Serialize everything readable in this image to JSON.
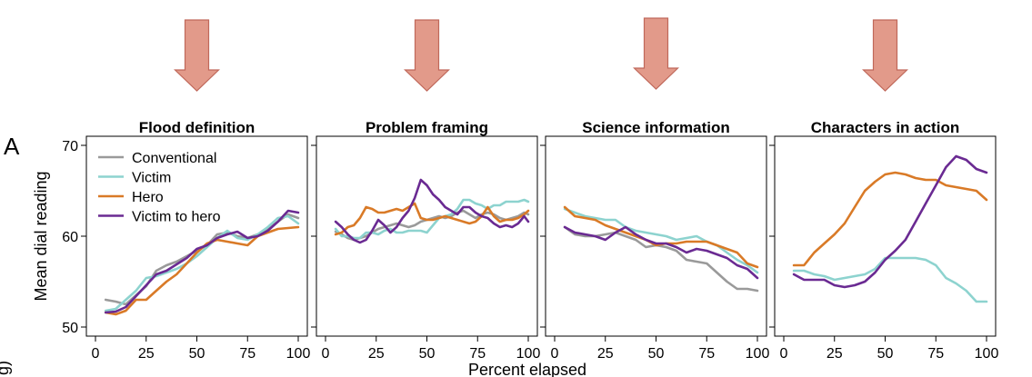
{
  "panel_letter": "A",
  "cut_label": "g)",
  "colors": {
    "Conventional": "#9a9a9a",
    "Victim": "#8dd3cf",
    "Hero": "#d97a27",
    "Victim to hero": "#6a2a92",
    "arrow_fill": "#e29a8a",
    "arrow_stroke": "#c0685a"
  },
  "chart_data": [
    {
      "type": "line",
      "title": "Flood definition",
      "xlabel": "Percent elapsed",
      "ylabel": "Mean dial reading",
      "xlim": [
        0,
        100
      ],
      "ylim": [
        49,
        71
      ],
      "xticks": [
        0,
        25,
        50,
        75,
        100
      ],
      "yticks": [
        50,
        60,
        70
      ],
      "grid": false,
      "legend": "top-left",
      "x": [
        5,
        10,
        15,
        20,
        25,
        30,
        35,
        40,
        45,
        50,
        55,
        60,
        65,
        70,
        75,
        80,
        85,
        90,
        95,
        100
      ],
      "series": [
        {
          "name": "Conventional",
          "values": [
            53.0,
            52.8,
            52.5,
            53.5,
            54.5,
            56.2,
            56.8,
            57.2,
            57.8,
            58.4,
            59.0,
            60.2,
            60.4,
            60.0,
            59.8,
            60.2,
            60.8,
            61.6,
            62.4,
            62.0
          ]
        },
        {
          "name": "Victim",
          "values": [
            51.8,
            52.0,
            53.0,
            54.0,
            55.4,
            55.6,
            56.0,
            56.4,
            57.0,
            57.8,
            58.8,
            59.8,
            60.6,
            59.8,
            59.6,
            60.2,
            61.0,
            62.0,
            62.2,
            61.4
          ]
        },
        {
          "name": "Hero",
          "values": [
            51.6,
            51.4,
            51.8,
            53.0,
            53.0,
            54.0,
            55.0,
            55.8,
            57.0,
            58.2,
            59.2,
            59.6,
            59.4,
            59.2,
            59.0,
            60.0,
            60.4,
            60.8,
            60.9,
            61.0
          ]
        },
        {
          "name": "Victim to hero",
          "values": [
            51.6,
            51.7,
            52.2,
            53.4,
            54.6,
            55.8,
            56.2,
            56.9,
            57.6,
            58.6,
            59.0,
            59.8,
            60.2,
            60.5,
            59.8,
            60.0,
            60.6,
            61.6,
            62.8,
            62.6
          ]
        }
      ]
    },
    {
      "type": "line",
      "title": "Problem framing",
      "xlabel": "Percent elapsed",
      "ylabel": "",
      "xlim": [
        0,
        100
      ],
      "ylim": [
        49,
        71
      ],
      "xticks": [
        0,
        25,
        50,
        75,
        100
      ],
      "yticks": [
        50,
        60,
        70
      ],
      "grid": false,
      "x": [
        5,
        8,
        11,
        14,
        17,
        20,
        23,
        26,
        29,
        32,
        35,
        38,
        41,
        44,
        47,
        50,
        53,
        56,
        59,
        62,
        65,
        68,
        71,
        74,
        77,
        80,
        83,
        86,
        89,
        92,
        95,
        98,
        100
      ],
      "series": [
        {
          "name": "Conventional",
          "values": [
            60.5,
            60.2,
            59.8,
            59.6,
            59.8,
            60.0,
            60.4,
            60.8,
            61.0,
            61.2,
            61.4,
            61.2,
            61.0,
            61.2,
            61.6,
            61.8,
            62.0,
            62.2,
            62.0,
            62.2,
            62.6,
            62.8,
            62.4,
            62.0,
            62.4,
            62.6,
            62.4,
            62.0,
            61.8,
            62.0,
            62.2,
            62.6,
            62.4
          ]
        },
        {
          "name": "Victim",
          "values": [
            60.8,
            60.0,
            60.0,
            59.8,
            59.8,
            60.4,
            60.4,
            60.2,
            60.6,
            60.8,
            60.4,
            60.4,
            60.6,
            60.6,
            60.6,
            60.4,
            61.2,
            62.0,
            62.2,
            62.4,
            63.0,
            64.0,
            64.0,
            63.6,
            63.4,
            63.0,
            63.4,
            63.4,
            63.8,
            63.8,
            63.8,
            64.0,
            63.8
          ]
        },
        {
          "name": "Hero",
          "values": [
            60.2,
            60.4,
            61.0,
            61.2,
            62.0,
            63.2,
            63.0,
            62.6,
            62.6,
            62.8,
            63.0,
            62.8,
            63.2,
            63.6,
            62.0,
            61.8,
            61.8,
            62.0,
            62.2,
            62.0,
            61.8,
            61.6,
            61.4,
            61.6,
            62.2,
            63.2,
            62.2,
            61.6,
            61.8,
            61.8,
            62.0,
            62.4,
            62.8
          ]
        },
        {
          "name": "Victim to hero",
          "values": [
            61.6,
            61.0,
            60.2,
            59.6,
            59.3,
            59.6,
            60.6,
            61.8,
            61.2,
            60.4,
            61.0,
            62.0,
            62.8,
            64.2,
            66.2,
            65.6,
            64.6,
            64.0,
            63.2,
            62.8,
            62.4,
            63.2,
            63.2,
            62.6,
            62.2,
            62.0,
            61.4,
            61.0,
            61.2,
            61.0,
            61.4,
            62.2,
            61.6
          ]
        }
      ]
    },
    {
      "type": "line",
      "title": "Science information",
      "xlabel": "Percent elapsed",
      "ylabel": "",
      "xlim": [
        0,
        100
      ],
      "ylim": [
        49,
        71
      ],
      "xticks": [
        0,
        25,
        50,
        75,
        100
      ],
      "yticks": [
        50,
        60,
        70
      ],
      "grid": false,
      "x": [
        5,
        10,
        15,
        20,
        25,
        30,
        35,
        40,
        45,
        50,
        55,
        60,
        65,
        70,
        75,
        80,
        85,
        90,
        95,
        100
      ],
      "series": [
        {
          "name": "Conventional",
          "values": [
            61.0,
            60.2,
            60.0,
            60.0,
            60.2,
            60.4,
            60.0,
            59.6,
            58.8,
            59.0,
            58.8,
            58.4,
            57.4,
            57.2,
            57.0,
            56.0,
            55.0,
            54.2,
            54.2,
            54.0
          ]
        },
        {
          "name": "Victim",
          "values": [
            63.0,
            62.6,
            62.2,
            62.0,
            61.8,
            61.8,
            61.0,
            60.6,
            60.4,
            60.2,
            60.0,
            59.6,
            59.8,
            60.0,
            59.4,
            59.0,
            58.2,
            57.4,
            56.8,
            56.0
          ]
        },
        {
          "name": "Hero",
          "values": [
            63.2,
            62.2,
            62.0,
            61.8,
            61.2,
            60.8,
            60.4,
            60.0,
            59.6,
            59.0,
            59.2,
            59.2,
            59.4,
            59.4,
            59.4,
            59.0,
            58.6,
            58.2,
            57.0,
            56.6
          ]
        },
        {
          "name": "Victim to hero",
          "values": [
            61.0,
            60.4,
            60.2,
            60.0,
            59.6,
            60.4,
            61.0,
            60.2,
            59.6,
            59.2,
            59.2,
            58.8,
            58.2,
            58.6,
            58.4,
            58.0,
            57.6,
            56.8,
            56.4,
            55.4
          ]
        }
      ]
    },
    {
      "type": "line",
      "title": "Characters in action",
      "xlabel": "Percent elapsed",
      "ylabel": "",
      "xlim": [
        0,
        100
      ],
      "ylim": [
        49,
        71
      ],
      "xticks": [
        0,
        25,
        50,
        75,
        100
      ],
      "yticks": [
        50,
        60,
        70
      ],
      "grid": false,
      "x": [
        5,
        10,
        15,
        20,
        25,
        30,
        35,
        40,
        45,
        50,
        55,
        60,
        65,
        70,
        75,
        80,
        85,
        90,
        95,
        100
      ],
      "series": [
        {
          "name": "Victim",
          "values": [
            56.2,
            56.2,
            55.8,
            55.6,
            55.2,
            55.4,
            55.6,
            55.8,
            56.4,
            57.6,
            57.6,
            57.6,
            57.6,
            57.4,
            56.8,
            55.4,
            54.8,
            54.0,
            52.8,
            52.8
          ]
        },
        {
          "name": "Hero",
          "values": [
            56.8,
            56.8,
            58.2,
            59.2,
            60.2,
            61.4,
            63.2,
            65.0,
            66.0,
            66.8,
            67.0,
            66.8,
            66.4,
            66.2,
            66.2,
            65.6,
            65.4,
            65.2,
            65.0,
            64.0
          ]
        },
        {
          "name": "Victim to hero",
          "values": [
            55.8,
            55.2,
            55.2,
            55.2,
            54.6,
            54.4,
            54.6,
            55.0,
            56.0,
            57.4,
            58.4,
            59.6,
            61.6,
            63.6,
            65.6,
            67.6,
            68.8,
            68.4,
            67.4,
            67.0
          ]
        }
      ]
    }
  ]
}
